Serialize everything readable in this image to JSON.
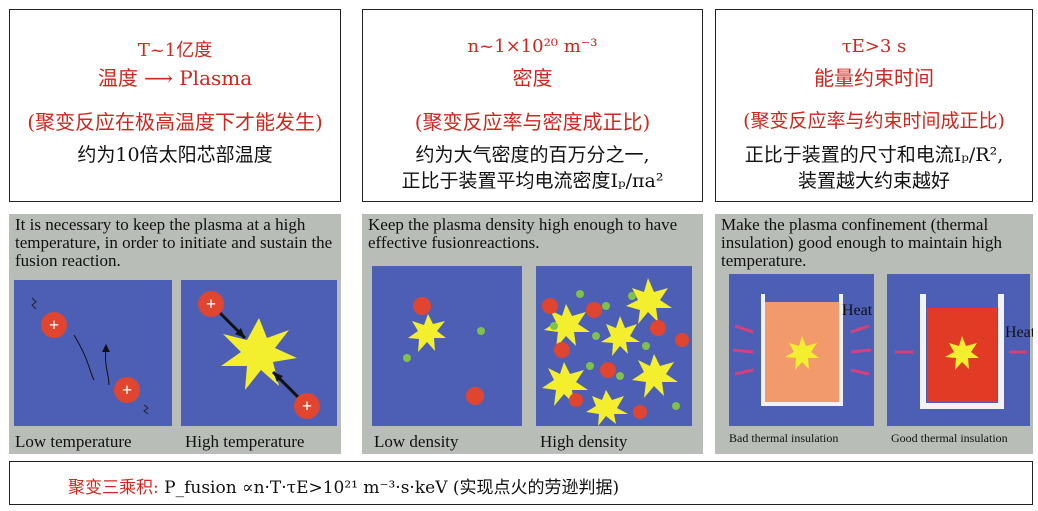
{
  "boxes": [
    {
      "line1": "T~1亿度",
      "line2": "温度 ⟶ Plasma",
      "line3": "(聚变反应在极高温度下才能发生)",
      "line4": "约为10倍太阳芯部温度"
    },
    {
      "line1": "n~1×10²⁰ m⁻³",
      "line2": "密度",
      "line3": "(聚变反应率与密度成正比)",
      "line4a": "约为大气密度的百万分之一,",
      "line4b": "正比于装置平均电流密度Iₚ/πa²"
    },
    {
      "line1": "τE>3 s",
      "line2": "能量约束时间",
      "line3": "(聚变反应率与约束时间成正比)",
      "line4a": "正比于装置的尺寸和电流Iₚ/R²,",
      "line4b": "装置越大约束越好"
    }
  ],
  "panels": [
    {
      "text": "It is necessary to keep the plasma at a high temperature, in order to initiate and sustain the fusion reaction.",
      "left_caption": "Low temperature",
      "right_caption": "High temperature"
    },
    {
      "text": "Keep the plasma density high enough to have effective fusionreactions.",
      "left_caption": "Low density",
      "right_caption": "High density"
    },
    {
      "text": "Make the plasma confinement (thermal insulation) good enough to maintain high temperature.",
      "left_caption": "Bad thermal insulation",
      "right_caption": "Good thermal insulation",
      "heat_left": "Heat",
      "heat_right": "Heat"
    }
  ],
  "formula": {
    "label": "聚变三乘积:",
    "expr": "P_fusion ∝n·T·τE>10²¹ m⁻³·s·keV",
    "note": "(实现点火的劳逊判据)"
  },
  "colors": {
    "red_text": "#d0261e",
    "panel_bg": "#b9bdb8",
    "square_blue": "#4c5fb5",
    "star_yellow": "#f3ee2e",
    "ion_red": "#e0452f",
    "green_dot": "#7fc24a"
  }
}
